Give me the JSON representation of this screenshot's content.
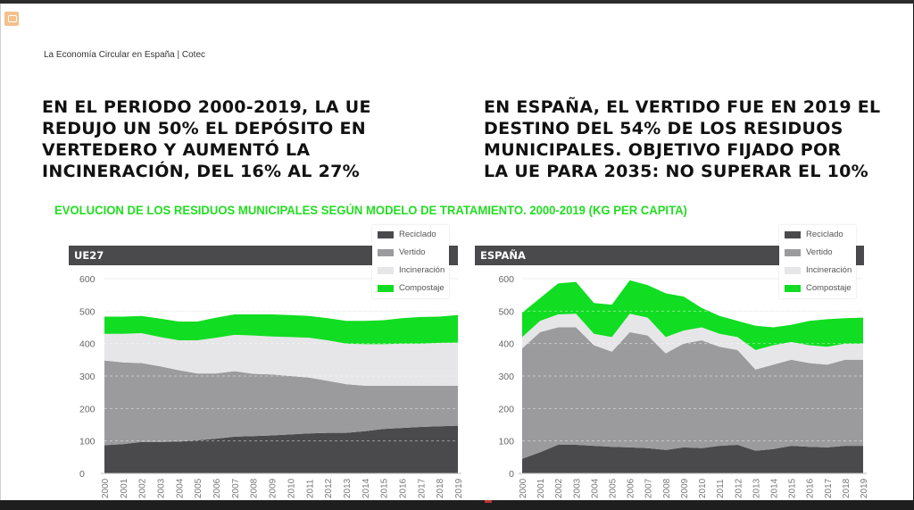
{
  "doc_header": "La Economía Circular en España | Cotec",
  "headline_left": "EN EL PERIODO 2000-2019, LA UE\nREDUJO UN 50% EL DEPÓSITO EN\nVERTEDERO Y AUMENTÓ LA\nINCINERACIÓN, DEL 16% AL 27%",
  "headline_right": "EN ESPAÑA, EL VERTIDO FUE EN 2019 EL\nDESTINO DEL 54% DE LOS RESIDUOS\nMUNICIPALES. OBJETIVO FIJADO POR\nLA UE PARA 2035: NO SUPERAR EL 10%",
  "subtitle": "EVOLUCION DE LOS RESIDUOS MUNICIPALES SEGÚN MODELO DE TRATAMIENTO. 2000-2019 (KG PER CAPITA)",
  "colors": {
    "Reciclado": "#4a494c",
    "Vertido": "#9b9a9d",
    "Incineración": "#e6e6e8",
    "Compostaje": "#11dd22",
    "subtitle": "#22dd22",
    "panel_bar": "#4a4a4c"
  },
  "legend": [
    "Reciclado",
    "Vertido",
    "Incineración",
    "Compostaje"
  ],
  "chart_data": [
    {
      "type": "area",
      "stacked": true,
      "title": "UE27",
      "xlabel": "",
      "ylabel": "kg per capita",
      "ylim": [
        0,
        600
      ],
      "yticks": [
        0,
        100,
        200,
        300,
        400,
        500,
        600
      ],
      "grid": true,
      "legend_position": "top-right",
      "x": [
        "2000",
        "2001",
        "2002",
        "2003",
        "2004",
        "2005",
        "2006",
        "2007",
        "2008",
        "2009",
        "2010",
        "2011",
        "2012",
        "2013",
        "2014",
        "2015",
        "2016",
        "2017",
        "2018",
        "2019"
      ],
      "series": [
        {
          "name": "Reciclado",
          "values": [
            87,
            90,
            97,
            97,
            98,
            102,
            107,
            113,
            115,
            117,
            120,
            123,
            125,
            125,
            130,
            137,
            140,
            143,
            145,
            147
          ]
        },
        {
          "name": "Vertido",
          "values": [
            261,
            252,
            243,
            233,
            220,
            206,
            201,
            202,
            192,
            188,
            180,
            172,
            160,
            150,
            140,
            133,
            130,
            127,
            125,
            123
          ]
        },
        {
          "name": "Incineración",
          "values": [
            82,
            88,
            92,
            90,
            92,
            102,
            110,
            112,
            118,
            117,
            120,
            123,
            125,
            125,
            128,
            128,
            130,
            130,
            132,
            133
          ]
        },
        {
          "name": "Compostaje",
          "values": [
            53,
            53,
            53,
            57,
            58,
            58,
            62,
            63,
            65,
            68,
            68,
            67,
            68,
            70,
            72,
            74,
            78,
            82,
            81,
            85
          ]
        }
      ]
    },
    {
      "type": "area",
      "stacked": true,
      "title": "ESPAÑA",
      "xlabel": "",
      "ylabel": "kg per capita",
      "ylim": [
        0,
        600
      ],
      "yticks": [
        0,
        100,
        200,
        300,
        400,
        500,
        600
      ],
      "grid": true,
      "legend_position": "top-right",
      "x": [
        "2000",
        "2001",
        "2002",
        "2003",
        "2004",
        "2005",
        "2006",
        "2007",
        "2008",
        "2009",
        "2010",
        "2011",
        "2012",
        "2013",
        "2014",
        "2015",
        "2016",
        "2017",
        "2018",
        "2019"
      ],
      "series": [
        {
          "name": "Reciclado",
          "values": [
            45,
            65,
            88,
            88,
            85,
            82,
            80,
            78,
            72,
            80,
            78,
            85,
            88,
            70,
            75,
            85,
            82,
            80,
            85,
            85
          ]
        },
        {
          "name": "Vertido",
          "values": [
            340,
            370,
            362,
            362,
            310,
            293,
            355,
            347,
            298,
            320,
            332,
            305,
            292,
            250,
            260,
            265,
            258,
            255,
            265,
            265
          ]
        },
        {
          "name": "Incineración",
          "values": [
            35,
            35,
            40,
            42,
            35,
            45,
            57,
            55,
            50,
            40,
            40,
            40,
            40,
            60,
            60,
            55,
            55,
            55,
            50,
            50
          ]
        },
        {
          "name": "Compostaje",
          "values": [
            75,
            70,
            95,
            98,
            95,
            100,
            103,
            100,
            135,
            105,
            60,
            55,
            50,
            75,
            55,
            53,
            75,
            85,
            78,
            80
          ]
        }
      ]
    }
  ]
}
